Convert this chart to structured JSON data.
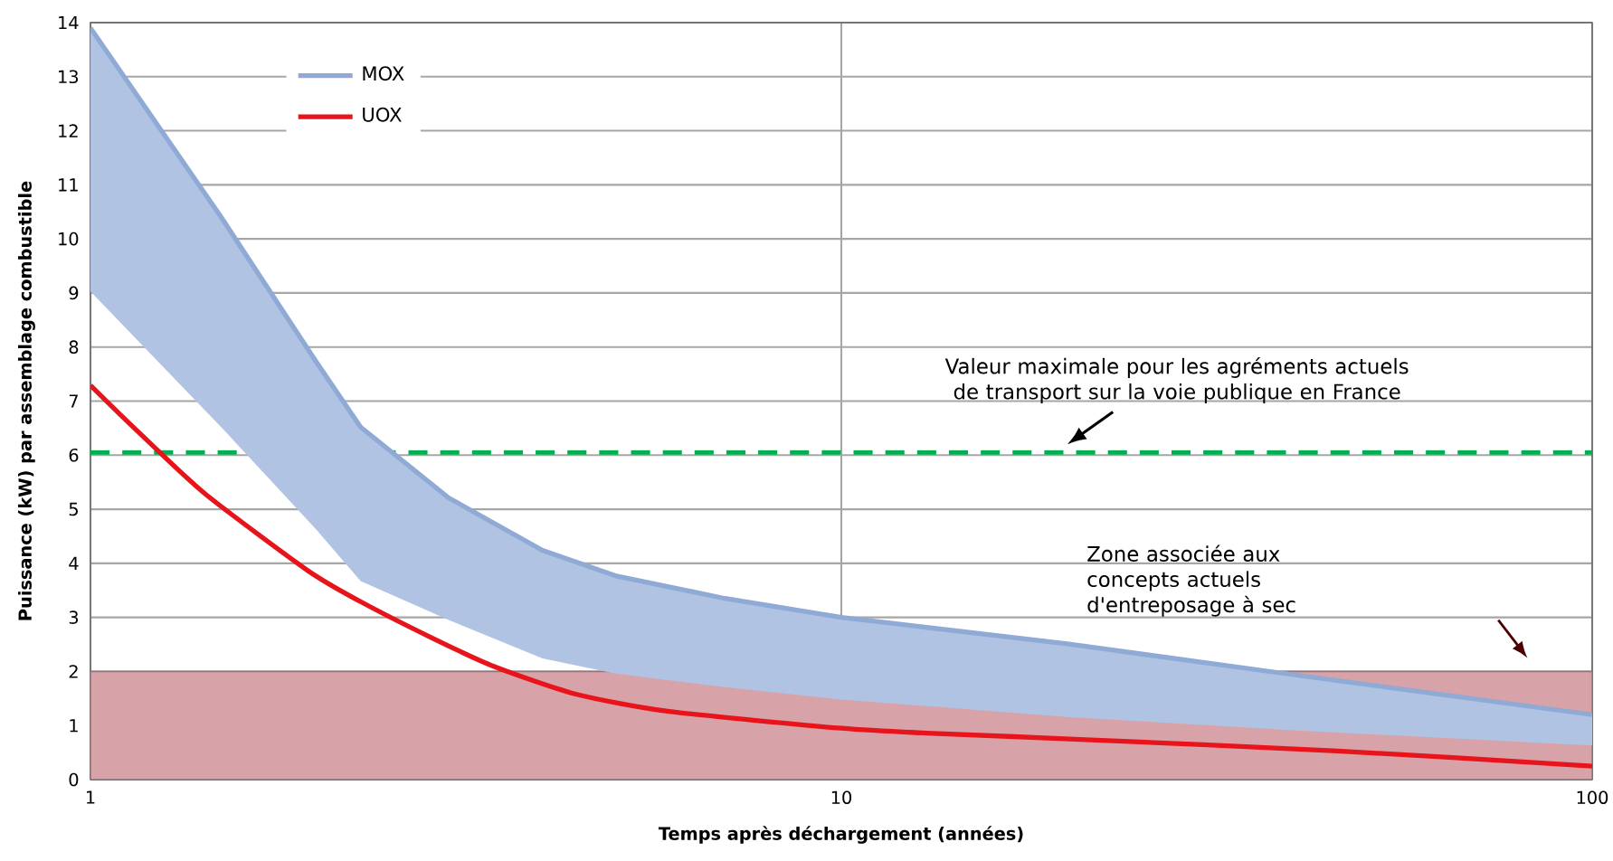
{
  "chart_data": {
    "type": "line",
    "xlabel": "Temps après déchargement (années)",
    "ylabel": "Puissance (kW) par assemblage combustible",
    "log": "x",
    "xlim": [
      1,
      100
    ],
    "ylim": [
      0,
      14
    ],
    "xticks": [
      1,
      10,
      100
    ],
    "yticks": [
      0,
      1,
      2,
      3,
      4,
      5,
      6,
      7,
      8,
      9,
      10,
      11,
      12,
      13,
      14
    ],
    "grid": true,
    "legend": "top left",
    "series": [
      {
        "name": "MOX",
        "type": "line",
        "color": "#8eaad5",
        "x": [
          1,
          1.5,
          2,
          2.29,
          3,
          4,
          5,
          7,
          10,
          20,
          40,
          100
        ],
        "values": [
          13.9,
          10.36,
          7.72,
          6.52,
          5.21,
          4.24,
          3.77,
          3.35,
          3.0,
          2.51,
          1.94,
          1.2
        ],
        "upper": [
          13.9,
          10.36,
          7.72,
          6.52,
          5.21,
          4.24,
          3.77,
          3.35,
          3.0,
          2.51,
          1.94,
          1.2
        ],
        "lower": [
          9.03,
          6.49,
          4.62,
          3.67,
          2.95,
          2.24,
          1.96,
          1.71,
          1.48,
          1.16,
          0.91,
          0.63
        ]
      },
      {
        "name": "UOX",
        "type": "line",
        "color": "#e8141c",
        "x": [
          1,
          1.14,
          1.42,
          1.95,
          2.29,
          2.85,
          3.45,
          4.43,
          5.9,
          10,
          13,
          19.5,
          45.8,
          100
        ],
        "values": [
          7.29,
          6.52,
          5.29,
          3.86,
          3.29,
          2.62,
          2.09,
          1.58,
          1.26,
          0.95,
          0.86,
          0.76,
          0.53,
          0.25
        ]
      }
    ],
    "ref_lines": [
      {
        "axis": "y",
        "value": 6.05,
        "label": "Valeur maximale pour les agréments actuels de transport sur la voie publique en France",
        "color": "#00b050",
        "line_style": "dashed"
      }
    ],
    "bands": [
      {
        "axis": "y",
        "from": 0,
        "to": 2,
        "label": "Zone associée aux concepts actuels d'entreposage à sec",
        "color": "#d8a3a8"
      }
    ]
  }
}
